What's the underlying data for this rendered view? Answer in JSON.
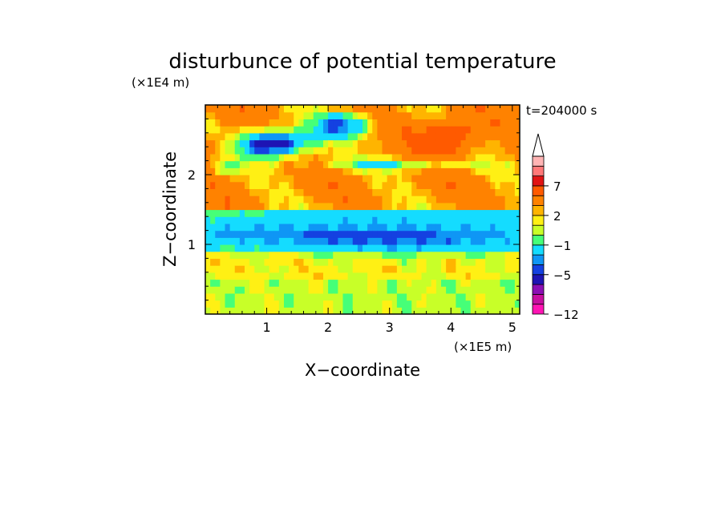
{
  "chart_data": {
    "type": "heatmap",
    "title": "disturbunce of potential temperature",
    "time_label": "t=204000 s",
    "xlabel": "X−coordinate",
    "ylabel": "Z−coordinate",
    "x_unit": "(×1E5 m)",
    "y_unit": "(×1E4 m)",
    "xlim": [
      0,
      5.12
    ],
    "ylim": [
      0,
      3.0
    ],
    "x_ticks": [
      {
        "value": 1,
        "label": "1"
      },
      {
        "value": 2,
        "label": "2"
      },
      {
        "value": 3,
        "label": "3"
      },
      {
        "value": 4,
        "label": "4"
      },
      {
        "value": 5,
        "label": "5"
      }
    ],
    "y_ticks": [
      {
        "value": 1,
        "label": "1"
      },
      {
        "value": 2,
        "label": "2"
      }
    ],
    "colorbar": {
      "levels": [
        -12,
        -11,
        -9,
        -7,
        -5,
        -4,
        -3,
        -1,
        0,
        1,
        2,
        3,
        5,
        7,
        9,
        11
      ],
      "colors": [
        "#ff14b4",
        "#c80fa0",
        "#8c0fb4",
        "#1e14b4",
        "#1441e1",
        "#0f96f5",
        "#14dcff",
        "#46ff78",
        "#c8ff28",
        "#fff014",
        "#ffb400",
        "#ff8200",
        "#ff5a00",
        "#e11414",
        "#ff7878",
        "#ffb4b4"
      ],
      "labels": [
        {
          "value": -12,
          "label": "−12"
        },
        {
          "value": -5,
          "label": "−5"
        },
        {
          "value": -1,
          "label": "−1"
        },
        {
          "value": 2,
          "label": "2"
        },
        {
          "value": 7,
          "label": "7"
        }
      ],
      "extend": "max"
    },
    "field": {
      "description_levels": "Depicted values: near-surface layer 0–0.5 mostly 0 to 1 (green/yellow); layer 0.5–0.9 around 1 to 2; cold band near z≈1.1–1.3 with values -5 to -3; cyan -1 band around z≈0.9 and z≈1.4; warm layers above z≈1.5 with values 2 to 7; negative blobs near x≈1.2,z≈2.4 (down to about -9) and x≈2.3,z≈2.7 (about -5); peak warm anomaly near x≈4,z≈2.5 (about 7).",
      "nx": 64,
      "nz": 30
    }
  }
}
